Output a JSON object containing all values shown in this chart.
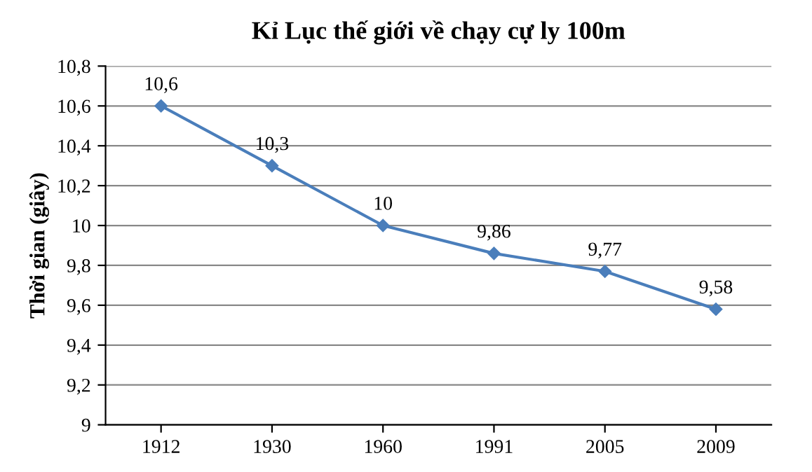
{
  "chart_data": {
    "type": "line",
    "title": "Kỉ Lục thế giới về chạy cự ly 100m",
    "ylabel": "Thời gian (giây)",
    "categories": [
      "1912",
      "1930",
      "1960",
      "1991",
      "2005",
      "2009"
    ],
    "series": [
      {
        "color": "#4a7ebb",
        "values": [
          10.6,
          10.3,
          10.0,
          9.86,
          9.77,
          9.58
        ],
        "value_labels": [
          "10,6",
          "10,3",
          "10",
          "9,86",
          "9,77",
          "9,58"
        ]
      }
    ],
    "ylim": [
      9,
      10.8
    ],
    "yticks": [
      9,
      {
        "value": 9.2,
        "label": "9,2"
      },
      {
        "value": 9.4,
        "label": "9,4"
      },
      {
        "value": 9.6,
        "label": "9,6"
      },
      {
        "value": 9.8,
        "label": "9,8"
      },
      10,
      {
        "value": 10.2,
        "label": "10,2"
      },
      {
        "value": 10.4,
        "label": "10,4"
      },
      {
        "value": 10.6,
        "label": "10,6"
      },
      {
        "value": 10.8,
        "label": "10,8"
      }
    ],
    "grid": "y",
    "marker": "diamond",
    "line_style": "solid"
  }
}
